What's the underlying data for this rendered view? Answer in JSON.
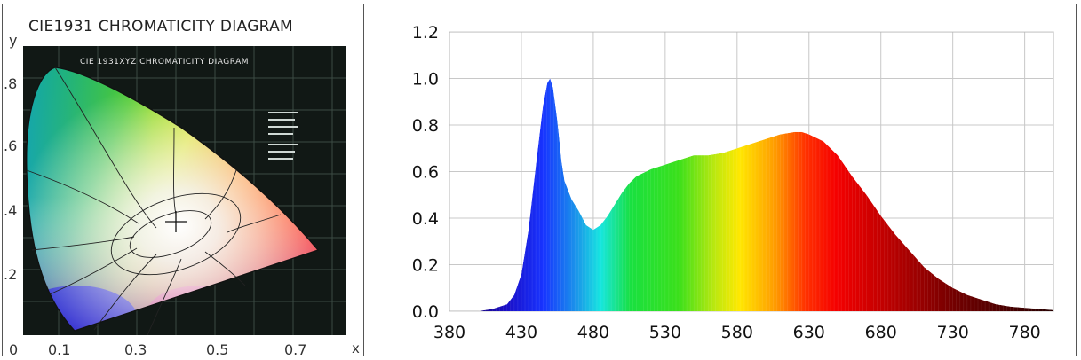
{
  "cie": {
    "title": "CIE1931 CHROMATICITY DIAGRAM",
    "inner_title": "CIE 1931XYZ CHROMATICITY DIAGRAM",
    "y_axis_label": "y",
    "x_axis_label": "x",
    "y_ticks": [
      ".8",
      ".6",
      ".4",
      ".2"
    ],
    "x_ticks": [
      "0",
      "0.1",
      "0.3",
      "0.5",
      "0.7"
    ]
  },
  "chart_data": [
    {
      "type": "area",
      "title": "",
      "xlabel": "",
      "ylabel": "",
      "xlim": [
        380,
        800
      ],
      "ylim": [
        0,
        1.2
      ],
      "grid": true,
      "x_ticks": [
        380,
        430,
        480,
        530,
        580,
        630,
        680,
        730,
        780
      ],
      "y_ticks": [
        0.0,
        0.2,
        0.4,
        0.6,
        0.8,
        1.0,
        1.2
      ],
      "x_tick_labels": [
        "380",
        "430",
        "480",
        "530",
        "580",
        "630",
        "680",
        "730",
        "780"
      ],
      "y_tick_labels": [
        "0.0",
        "0.2",
        "0.4",
        "0.6",
        "0.8",
        "1.0",
        "1.2"
      ],
      "fill": "spectral",
      "series": [
        {
          "x": [
            380,
            400,
            410,
            420,
            425,
            430,
            435,
            440,
            445,
            448,
            450,
            452,
            455,
            458,
            460,
            465,
            470,
            475,
            480,
            485,
            490,
            495,
            500,
            505,
            510,
            520,
            530,
            540,
            550,
            560,
            570,
            580,
            590,
            600,
            610,
            620,
            625,
            630,
            640,
            650,
            660,
            670,
            680,
            690,
            700,
            710,
            720,
            730,
            740,
            750,
            760,
            770,
            780,
            790,
            800
          ],
          "values": [
            0.0,
            0.0,
            0.01,
            0.03,
            0.07,
            0.16,
            0.35,
            0.62,
            0.88,
            0.98,
            1.0,
            0.96,
            0.82,
            0.64,
            0.56,
            0.48,
            0.43,
            0.37,
            0.35,
            0.37,
            0.41,
            0.46,
            0.51,
            0.55,
            0.58,
            0.61,
            0.63,
            0.65,
            0.67,
            0.67,
            0.68,
            0.7,
            0.72,
            0.74,
            0.76,
            0.77,
            0.77,
            0.76,
            0.73,
            0.67,
            0.58,
            0.5,
            0.41,
            0.33,
            0.26,
            0.19,
            0.14,
            0.1,
            0.07,
            0.05,
            0.03,
            0.02,
            0.015,
            0.01,
            0.005
          ]
        }
      ]
    }
  ]
}
